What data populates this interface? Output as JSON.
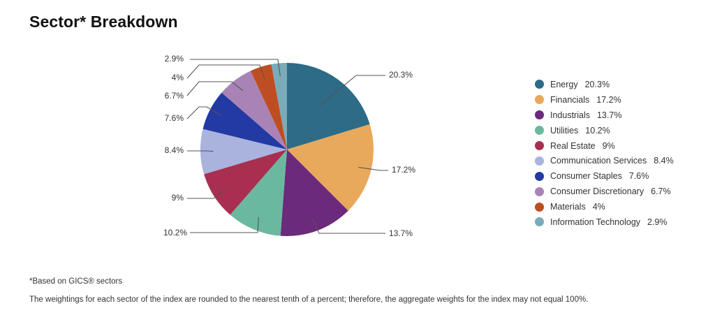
{
  "title": "Sector* Breakdown",
  "footnotes": {
    "gics": "*Based on GICS® sectors",
    "rounding": "The weightings for each sector of the index are rounded to the nearest tenth of a percent; therefore, the aggregate weights for the index may not equal 100%."
  },
  "legend": [
    {
      "name": "Energy",
      "value": "20.3%",
      "color": "#2d6b86"
    },
    {
      "name": "Financials",
      "value": "17.2%",
      "color": "#e8a95c"
    },
    {
      "name": "Industrials",
      "value": "13.7%",
      "color": "#6b2a7c"
    },
    {
      "name": "Utilities",
      "value": "10.2%",
      "color": "#6bb8a0"
    },
    {
      "name": "Real Estate",
      "value": "9%",
      "color": "#a82f50"
    },
    {
      "name": "Communication Services",
      "value": "8.4%",
      "color": "#a9b3de"
    },
    {
      "name": "Consumer Staples",
      "value": "7.6%",
      "color": "#2339a3"
    },
    {
      "name": "Consumer Discretionary",
      "value": "6.7%",
      "color": "#a983b6"
    },
    {
      "name": "Materials",
      "value": "4%",
      "color": "#be4e22"
    },
    {
      "name": "Information Technology",
      "value": "2.9%",
      "color": "#7aabb9"
    }
  ],
  "chart_data": {
    "type": "pie",
    "title": "Sector* Breakdown",
    "categories": [
      "Energy",
      "Financials",
      "Industrials",
      "Utilities",
      "Real Estate",
      "Communication Services",
      "Consumer Staples",
      "Consumer Discretionary",
      "Materials",
      "Information Technology"
    ],
    "values": [
      20.3,
      17.2,
      13.7,
      10.2,
      9.0,
      8.4,
      7.6,
      6.7,
      4.0,
      2.9
    ],
    "colors": [
      "#2d6b86",
      "#e8a95c",
      "#6b2a7c",
      "#6bb8a0",
      "#a82f50",
      "#a9b3de",
      "#2339a3",
      "#a983b6",
      "#be4e22",
      "#7aabb9"
    ],
    "data_labels": [
      "20.3%",
      "17.2%",
      "13.7%",
      "10.2%",
      "9%",
      "8.4%",
      "7.6%",
      "6.7%",
      "4%",
      "2.9%"
    ],
    "start_angle": "12 o'clock, clockwise",
    "legend_position": "right",
    "xlabel": "",
    "ylabel": ""
  }
}
